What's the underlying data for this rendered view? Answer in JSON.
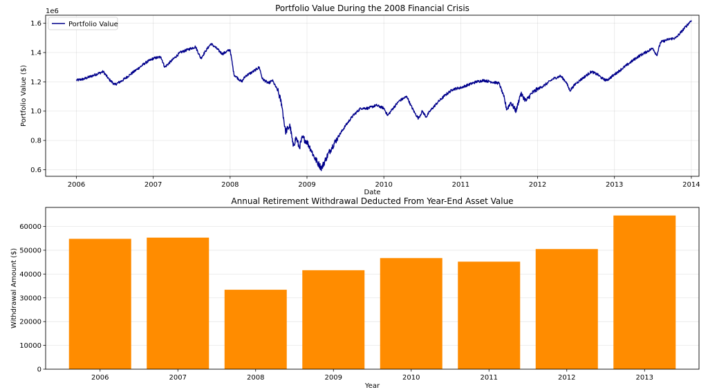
{
  "chart_data": [
    {
      "type": "line",
      "title": "Portfolio Value During the 2008 Financial Crisis",
      "xlabel": "Date",
      "ylabel": "Portfolio Value ($)",
      "offset_label": "1e6",
      "xlim": [
        2005.6,
        2014.1
      ],
      "ylim": [
        0.555,
        1.655
      ],
      "xticks": [
        2006,
        2007,
        2008,
        2009,
        2010,
        2011,
        2012,
        2013,
        2014
      ],
      "yticks": [
        0.6,
        0.8,
        1.0,
        1.2,
        1.4,
        1.6
      ],
      "ytick_labels": [
        "0.6",
        "0.8",
        "1.0",
        "1.2",
        "1.4",
        "1.6"
      ],
      "grid": true,
      "legend": "upper-left",
      "series": [
        {
          "name": "Portfolio Value",
          "color": "#00008b",
          "x": [
            2006.0,
            2006.1,
            2006.2,
            2006.3,
            2006.35,
            2006.42,
            2006.5,
            2006.6,
            2006.7,
            2006.8,
            2006.9,
            2007.0,
            2007.1,
            2007.15,
            2007.25,
            2007.35,
            2007.45,
            2007.55,
            2007.62,
            2007.68,
            2007.75,
            2007.8,
            2007.9,
            2008.0,
            2008.05,
            2008.15,
            2008.2,
            2008.3,
            2008.38,
            2008.42,
            2008.5,
            2008.55,
            2008.62,
            2008.67,
            2008.72,
            2008.78,
            2008.82,
            2008.86,
            2008.9,
            2008.94,
            2009.0,
            2009.05,
            2009.1,
            2009.15,
            2009.19,
            2009.25,
            2009.32,
            2009.4,
            2009.5,
            2009.6,
            2009.7,
            2009.8,
            2009.9,
            2010.0,
            2010.05,
            2010.12,
            2010.2,
            2010.3,
            2010.35,
            2010.4,
            2010.45,
            2010.5,
            2010.55,
            2010.6,
            2010.7,
            2010.8,
            2010.9,
            2011.0,
            2011.1,
            2011.2,
            2011.3,
            2011.4,
            2011.5,
            2011.56,
            2011.6,
            2011.65,
            2011.72,
            2011.78,
            2011.85,
            2011.92,
            2012.0,
            2012.1,
            2012.2,
            2012.3,
            2012.37,
            2012.42,
            2012.5,
            2012.6,
            2012.7,
            2012.78,
            2012.85,
            2012.9,
            2013.0,
            2013.1,
            2013.2,
            2013.3,
            2013.4,
            2013.5,
            2013.55,
            2013.6,
            2013.7,
            2013.8,
            2013.9,
            2014.0
          ],
          "y": [
            1.21,
            1.22,
            1.24,
            1.26,
            1.27,
            1.22,
            1.18,
            1.21,
            1.25,
            1.29,
            1.33,
            1.36,
            1.37,
            1.3,
            1.35,
            1.4,
            1.42,
            1.44,
            1.36,
            1.41,
            1.46,
            1.44,
            1.39,
            1.42,
            1.25,
            1.2,
            1.24,
            1.27,
            1.3,
            1.22,
            1.19,
            1.21,
            1.14,
            1.05,
            0.86,
            0.9,
            0.76,
            0.82,
            0.75,
            0.82,
            0.79,
            0.74,
            0.68,
            0.64,
            0.61,
            0.68,
            0.75,
            0.82,
            0.9,
            0.97,
            1.02,
            1.02,
            1.04,
            1.02,
            0.97,
            1.02,
            1.07,
            1.1,
            1.04,
            0.99,
            0.95,
            1.0,
            0.96,
            1.0,
            1.06,
            1.11,
            1.15,
            1.16,
            1.18,
            1.2,
            1.21,
            1.2,
            1.19,
            1.1,
            1.01,
            1.06,
            1.0,
            1.12,
            1.07,
            1.12,
            1.15,
            1.18,
            1.22,
            1.24,
            1.2,
            1.14,
            1.19,
            1.23,
            1.27,
            1.25,
            1.22,
            1.21,
            1.25,
            1.29,
            1.33,
            1.37,
            1.4,
            1.43,
            1.38,
            1.47,
            1.49,
            1.5,
            1.56,
            1.62
          ]
        }
      ]
    },
    {
      "type": "bar",
      "title": "Annual Retirement Withdrawal Deducted From Year-End Asset Value",
      "xlabel": "Year",
      "ylabel": "Withdrawal Amount ($)",
      "categories": [
        "2006",
        "2007",
        "2008",
        "2009",
        "2010",
        "2011",
        "2012",
        "2013"
      ],
      "values": [
        54800,
        55300,
        33400,
        41600,
        46700,
        45200,
        50500,
        64600
      ],
      "ylim": [
        0,
        68000
      ],
      "yticks": [
        0,
        10000,
        20000,
        30000,
        40000,
        50000,
        60000
      ],
      "ytick_labels": [
        "0",
        "10000",
        "20000",
        "30000",
        "40000",
        "50000",
        "60000"
      ],
      "bar_color": "#ff8c00",
      "grid": true
    }
  ]
}
